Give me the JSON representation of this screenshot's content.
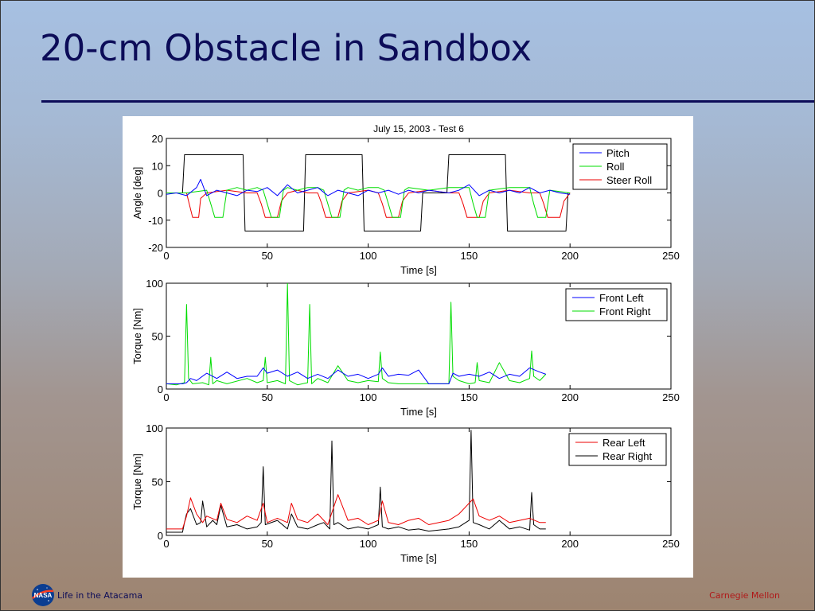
{
  "slide": {
    "title": "20-cm Obstacle in Sandbox",
    "footer_left": "Life in the Atacama",
    "footer_right": "Carnegie Mellon",
    "logo_icon": "nasa-logo-icon",
    "title_color": "#0c0c58"
  },
  "chart_data": [
    {
      "type": "line",
      "title": "July 15, 2003 - Test 6",
      "xlabel": "Time [s]",
      "ylabel": "Angle [deg]",
      "xlim": [
        0,
        250
      ],
      "ylim": [
        -20,
        20
      ],
      "xticks": [
        "0",
        "50",
        "100",
        "150",
        "200",
        "250"
      ],
      "yticks": [
        "20",
        "10",
        "0",
        "-10",
        "-20"
      ],
      "grid": false,
      "legend_position": "top-right",
      "series": [
        {
          "name": "Pitch",
          "color": "#0000ff",
          "x": [
            0,
            5,
            10,
            15,
            17,
            20,
            25,
            30,
            35,
            40,
            45,
            50,
            55,
            60,
            65,
            70,
            75,
            80,
            85,
            90,
            95,
            100,
            105,
            110,
            115,
            120,
            125,
            130,
            140,
            145,
            150,
            155,
            160,
            165,
            170,
            175,
            180,
            185,
            190,
            195,
            200
          ],
          "y": [
            -0.5,
            0,
            -1,
            2,
            5,
            -1,
            1,
            0,
            -1,
            1,
            0.5,
            2,
            -1,
            3,
            0,
            1,
            2,
            -1,
            1,
            0,
            -1,
            1,
            0,
            1,
            -0.5,
            1,
            0,
            1,
            0,
            1,
            3,
            -1,
            1,
            0,
            1,
            0,
            2,
            0,
            1,
            0,
            -0.5
          ]
        },
        {
          "name": "Roll",
          "color": "#00dd00",
          "x": [
            0,
            10,
            20,
            22,
            24,
            26,
            28,
            30,
            35,
            40,
            45,
            48,
            50,
            52,
            54,
            56,
            58,
            60,
            65,
            70,
            75,
            78,
            80,
            82,
            84,
            86,
            88,
            90,
            95,
            100,
            105,
            108,
            110,
            112,
            114,
            116,
            118,
            120,
            130,
            140,
            145,
            150,
            152,
            154,
            156,
            158,
            160,
            170,
            180,
            182,
            184,
            186,
            188,
            190,
            200
          ],
          "y": [
            0,
            0,
            1,
            -4,
            -9,
            -9,
            -9,
            1,
            2,
            1,
            2,
            1,
            -4,
            -9,
            -9,
            -9,
            1,
            2,
            1,
            2,
            2,
            1,
            -4,
            -9,
            -9,
            -9,
            1,
            2,
            1,
            2,
            2,
            1,
            -4,
            -9,
            -9,
            -9,
            1,
            2,
            1,
            2,
            2,
            2,
            -4,
            -9,
            -9,
            -9,
            1,
            2,
            2,
            -4,
            -9,
            -9,
            -9,
            1,
            0
          ]
        },
        {
          "name": "Steer Roll",
          "color": "#ee0000",
          "x": [
            0,
            10,
            11,
            13,
            16,
            17,
            20,
            30,
            40,
            45,
            47,
            49,
            55,
            57,
            60,
            65,
            70,
            75,
            77,
            79,
            85,
            87,
            90,
            100,
            105,
            107,
            109,
            115,
            117,
            120,
            130,
            140,
            145,
            147,
            149,
            155,
            157,
            160,
            170,
            180,
            185,
            187,
            189,
            195,
            197,
            200
          ],
          "y": [
            0,
            0,
            -3,
            -9,
            -9,
            -2,
            0,
            1,
            0,
            0,
            -4,
            -9,
            -9,
            -3,
            0,
            1,
            0,
            0,
            -4,
            -9,
            -9,
            -3,
            0,
            1,
            0,
            -4,
            -9,
            -9,
            -3,
            0,
            1,
            0,
            0,
            -4,
            -9,
            -9,
            -3,
            0,
            1,
            0,
            0,
            -4,
            -9,
            -9,
            -3,
            0
          ]
        },
        {
          "name": "",
          "color": "#000000",
          "x": [
            0,
            8,
            9,
            38,
            39,
            68,
            69,
            97,
            98,
            126,
            127,
            139,
            140,
            168,
            169,
            198,
            199
          ],
          "y": [
            0,
            0,
            14,
            14,
            -14,
            -14,
            14,
            14,
            -14,
            -14,
            0,
            0,
            14,
            14,
            -14,
            -14,
            0
          ]
        }
      ]
    },
    {
      "type": "line",
      "title": "",
      "xlabel": "Time [s]",
      "ylabel": "Torque [Nm]",
      "xlim": [
        0,
        250
      ],
      "ylim": [
        0,
        100
      ],
      "xticks": [
        "0",
        "50",
        "100",
        "150",
        "200",
        "250"
      ],
      "yticks": [
        "100",
        "50",
        "0"
      ],
      "grid": false,
      "legend_position": "top-right",
      "series": [
        {
          "name": "Front Left",
          "color": "#0000ff",
          "x": [
            0,
            8,
            10,
            12,
            15,
            20,
            25,
            30,
            35,
            40,
            45,
            48,
            50,
            55,
            60,
            65,
            70,
            75,
            80,
            85,
            90,
            95,
            100,
            105,
            107,
            110,
            115,
            120,
            125,
            130,
            140,
            142,
            145,
            150,
            155,
            160,
            165,
            170,
            175,
            180,
            185,
            188
          ],
          "y": [
            5,
            5,
            6,
            10,
            8,
            15,
            10,
            16,
            10,
            12,
            12,
            20,
            15,
            18,
            12,
            16,
            10,
            14,
            10,
            18,
            12,
            14,
            10,
            14,
            20,
            12,
            14,
            13,
            18,
            5,
            5,
            15,
            12,
            14,
            12,
            16,
            10,
            14,
            12,
            20,
            16,
            14
          ]
        },
        {
          "name": "Front Right",
          "color": "#00dd00",
          "x": [
            0,
            5,
            9,
            10,
            11,
            13,
            18,
            21,
            22,
            23,
            25,
            30,
            40,
            45,
            48,
            49,
            50,
            55,
            59,
            60,
            61,
            65,
            70,
            71,
            72,
            75,
            80,
            85,
            90,
            95,
            100,
            105,
            106,
            107,
            110,
            115,
            125,
            130,
            140,
            141,
            142,
            145,
            150,
            153,
            154,
            155,
            160,
            165,
            170,
            175,
            180,
            181,
            182,
            185,
            188
          ],
          "y": [
            5,
            4,
            6,
            80,
            10,
            5,
            6,
            4,
            30,
            5,
            8,
            5,
            10,
            6,
            8,
            30,
            6,
            8,
            5,
            100,
            8,
            4,
            6,
            80,
            5,
            10,
            6,
            22,
            8,
            6,
            8,
            7,
            35,
            10,
            6,
            5,
            5,
            5,
            5,
            82,
            12,
            8,
            5,
            6,
            25,
            8,
            6,
            25,
            8,
            6,
            10,
            36,
            12,
            8,
            14
          ]
        }
      ]
    },
    {
      "type": "line",
      "title": "",
      "xlabel": "Time [s]",
      "ylabel": "Torque [Nm]",
      "xlim": [
        0,
        250
      ],
      "ylim": [
        0,
        100
      ],
      "xticks": [
        "0",
        "50",
        "100",
        "150",
        "200",
        "250"
      ],
      "yticks": [
        "100",
        "50",
        "0"
      ],
      "grid": false,
      "legend_position": "top-right",
      "series": [
        {
          "name": "Rear Left",
          "color": "#ee0000",
          "x": [
            0,
            8,
            10,
            12,
            15,
            18,
            20,
            25,
            27,
            30,
            35,
            40,
            45,
            48,
            50,
            55,
            60,
            62,
            65,
            70,
            75,
            80,
            85,
            90,
            95,
            100,
            105,
            107,
            110,
            115,
            120,
            125,
            130,
            140,
            145,
            150,
            152,
            155,
            160,
            165,
            170,
            175,
            180,
            185,
            188
          ],
          "y": [
            6,
            6,
            18,
            35,
            20,
            12,
            18,
            14,
            30,
            15,
            12,
            18,
            14,
            30,
            12,
            16,
            12,
            30,
            15,
            12,
            20,
            10,
            38,
            14,
            16,
            10,
            14,
            32,
            12,
            10,
            14,
            16,
            10,
            14,
            20,
            30,
            34,
            18,
            14,
            18,
            12,
            14,
            16,
            12,
            12
          ]
        },
        {
          "name": "Rear Right",
          "color": "#000000",
          "x": [
            0,
            8,
            9,
            10,
            12,
            15,
            17,
            18,
            20,
            23,
            25,
            27,
            30,
            35,
            40,
            45,
            47,
            48,
            49,
            55,
            60,
            62,
            65,
            70,
            75,
            78,
            81,
            82,
            83,
            85,
            90,
            95,
            100,
            105,
            106,
            107,
            110,
            115,
            120,
            125,
            130,
            140,
            145,
            150,
            151,
            152,
            155,
            160,
            165,
            170,
            175,
            180,
            181,
            182,
            185,
            188
          ],
          "y": [
            3,
            3,
            12,
            20,
            25,
            10,
            12,
            32,
            8,
            14,
            10,
            28,
            8,
            10,
            6,
            8,
            12,
            64,
            10,
            14,
            6,
            20,
            8,
            6,
            10,
            12,
            6,
            88,
            10,
            12,
            6,
            8,
            6,
            10,
            45,
            8,
            6,
            8,
            5,
            6,
            4,
            6,
            8,
            14,
            98,
            12,
            10,
            6,
            14,
            6,
            8,
            5,
            40,
            10,
            6,
            6
          ]
        }
      ]
    }
  ]
}
